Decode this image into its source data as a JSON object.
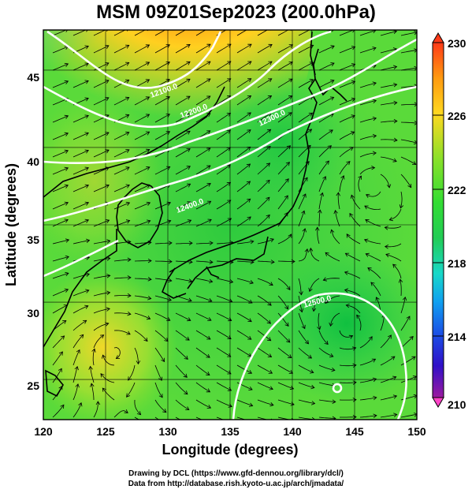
{
  "title": "MSM 09Z01Sep2023 (200.0hPa)",
  "axes": {
    "xlabel": "Longitude (degrees)",
    "ylabel": "Latitude  (degrees)",
    "xlim": [
      120,
      150
    ],
    "ylim": [
      22.4,
      47.6
    ],
    "xticks": [
      "120",
      "125",
      "130",
      "135",
      "140",
      "145",
      "150"
    ],
    "yticks": [
      "25",
      "30",
      "35",
      "40",
      "45"
    ]
  },
  "colorbar": {
    "ticks": [
      "230",
      "226",
      "222",
      "218",
      "214",
      "210"
    ],
    "range": [
      210,
      230
    ],
    "colors": [
      "#ff44c8",
      "#9c1aa0",
      "#3010c8",
      "#1a50e6",
      "#10a0f0",
      "#18d8c8",
      "#22cc55",
      "#33dd33",
      "#88e02a",
      "#ffd820",
      "#ff9a10",
      "#ff3a18"
    ]
  },
  "contours": {
    "color": "#ffffff",
    "labels": [
      "12100.0",
      "12200.0",
      "12300.0",
      "12400.0",
      "12500.0",
      "12500.0"
    ]
  },
  "chart_data": {
    "type": "heatmap",
    "title": "MSM 09Z01Sep2023 (200.0hPa)",
    "xlabel": "Longitude (degrees)",
    "ylabel": "Latitude  (degrees)",
    "x_range": [
      120,
      150
    ],
    "y_range": [
      22.4,
      47.6
    ],
    "field_range": [
      210,
      230
    ],
    "contour_labels": [
      12100.0,
      12200.0,
      12300.0,
      12400.0,
      12500.0
    ]
  },
  "credit": {
    "line1": "Drawing by DCL (https://www.gfd-dennou.org/library/dcl/)",
    "line2": "Data from http://database.rish.kyoto-u.ac.jp/arch/jmadata/"
  }
}
